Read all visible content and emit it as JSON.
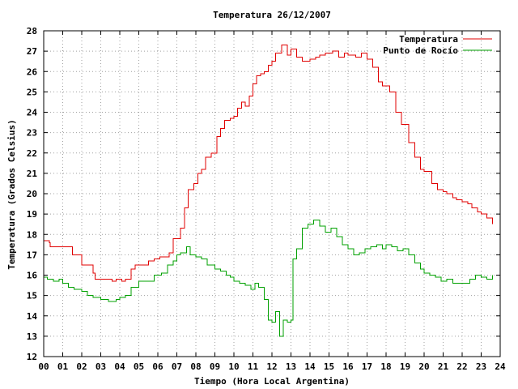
{
  "chart_data": {
    "type": "line",
    "title": "Temperatura 26/12/2007",
    "xlabel": "Tiempo (Hora Local Argentina)",
    "ylabel": "Temperatura (Grados Celsius)",
    "xlim": [
      0,
      24
    ],
    "ylim": [
      12,
      28
    ],
    "x_ticks": [
      "00",
      "01",
      "02",
      "03",
      "04",
      "05",
      "06",
      "07",
      "08",
      "09",
      "10",
      "11",
      "12",
      "13",
      "14",
      "15",
      "16",
      "17",
      "18",
      "19",
      "20",
      "21",
      "22",
      "23",
      "24"
    ],
    "y_ticks": [
      "12",
      "13",
      "14",
      "15",
      "16",
      "17",
      "18",
      "19",
      "20",
      "21",
      "22",
      "23",
      "24",
      "25",
      "26",
      "27",
      "28"
    ],
    "grid": true,
    "legend_position": "top-right",
    "series": [
      {
        "name": "Temperatura",
        "color": "#e00000",
        "x": [
          0,
          0.3,
          0.35,
          1.2,
          1.5,
          2.0,
          2.2,
          2.6,
          2.7,
          3.6,
          3.8,
          4.1,
          4.3,
          4.6,
          4.8,
          5.2,
          5.5,
          5.8,
          6.1,
          6.4,
          6.6,
          6.8,
          7.0,
          7.2,
          7.4,
          7.6,
          7.9,
          8.1,
          8.3,
          8.5,
          8.8,
          9.1,
          9.3,
          9.5,
          9.8,
          10.0,
          10.2,
          10.4,
          10.6,
          10.8,
          11.0,
          11.2,
          11.4,
          11.6,
          11.8,
          12.0,
          12.2,
          12.5,
          12.8,
          13.0,
          13.3,
          13.6,
          14.0,
          14.3,
          14.5,
          14.8,
          15.2,
          15.5,
          15.8,
          16.0,
          16.4,
          16.7,
          17.0,
          17.3,
          17.6,
          17.8,
          18.2,
          18.5,
          18.8,
          19.2,
          19.5,
          19.8,
          20.0,
          20.4,
          20.7,
          21.0,
          21.2,
          21.5,
          21.7,
          22.0,
          22.3,
          22.5,
          22.8,
          23.0,
          23.3,
          23.6
        ],
        "values": [
          17.7,
          17.6,
          17.4,
          17.4,
          17.0,
          16.5,
          16.5,
          16.1,
          15.8,
          15.7,
          15.8,
          15.7,
          15.8,
          16.3,
          16.5,
          16.5,
          16.7,
          16.8,
          16.9,
          16.9,
          17.1,
          17.8,
          17.8,
          18.3,
          19.3,
          20.2,
          20.5,
          21.0,
          21.2,
          21.8,
          22.0,
          22.8,
          23.2,
          23.6,
          23.7,
          23.8,
          24.2,
          24.5,
          24.3,
          24.8,
          25.4,
          25.8,
          25.9,
          26.0,
          26.3,
          26.5,
          26.9,
          27.3,
          26.8,
          27.1,
          26.7,
          26.5,
          26.6,
          26.7,
          26.8,
          26.9,
          27.0,
          26.7,
          26.9,
          26.8,
          26.7,
          26.9,
          26.6,
          26.2,
          25.5,
          25.3,
          25.0,
          24.0,
          23.4,
          22.5,
          21.8,
          21.2,
          21.1,
          20.5,
          20.2,
          20.1,
          20.0,
          19.8,
          19.7,
          19.6,
          19.5,
          19.3,
          19.1,
          19.0,
          18.8,
          18.5
        ]
      },
      {
        "name": "Punto de Rocío",
        "color": "#00a000",
        "x": [
          0,
          0.2,
          0.5,
          0.8,
          1.0,
          1.3,
          1.6,
          2.0,
          2.3,
          2.6,
          3.0,
          3.4,
          3.8,
          4.0,
          4.3,
          4.6,
          5.0,
          5.4,
          5.8,
          6.2,
          6.5,
          6.8,
          7.0,
          7.2,
          7.5,
          7.7,
          8.0,
          8.3,
          8.6,
          9.0,
          9.3,
          9.6,
          9.8,
          10.0,
          10.3,
          10.6,
          10.9,
          11.1,
          11.3,
          11.6,
          11.8,
          12.0,
          12.2,
          12.4,
          12.6,
          12.8,
          13.0,
          13.1,
          13.3,
          13.6,
          13.9,
          14.2,
          14.5,
          14.8,
          15.1,
          15.4,
          15.7,
          16.0,
          16.3,
          16.6,
          16.9,
          17.2,
          17.5,
          17.8,
          18.0,
          18.3,
          18.6,
          18.9,
          19.2,
          19.5,
          19.8,
          20.0,
          20.3,
          20.6,
          20.9,
          21.2,
          21.5,
          21.8,
          22.1,
          22.4,
          22.7,
          23.0,
          23.3,
          23.6
        ],
        "values": [
          15.9,
          15.8,
          15.7,
          15.8,
          15.6,
          15.4,
          15.3,
          15.2,
          15.0,
          14.9,
          14.8,
          14.7,
          14.8,
          14.9,
          15.0,
          15.4,
          15.7,
          15.7,
          16.0,
          16.1,
          16.5,
          16.7,
          17.0,
          17.1,
          17.4,
          17.0,
          16.9,
          16.8,
          16.5,
          16.3,
          16.2,
          16.0,
          15.9,
          15.7,
          15.6,
          15.5,
          15.3,
          15.6,
          15.4,
          14.8,
          13.8,
          13.7,
          14.2,
          13.0,
          13.8,
          13.7,
          13.8,
          16.8,
          17.3,
          18.3,
          18.5,
          18.7,
          18.4,
          18.1,
          18.3,
          17.9,
          17.5,
          17.3,
          17.0,
          17.1,
          17.3,
          17.4,
          17.5,
          17.3,
          17.5,
          17.4,
          17.2,
          17.3,
          17.0,
          16.6,
          16.3,
          16.1,
          16.0,
          15.9,
          15.7,
          15.8,
          15.6,
          15.6,
          15.6,
          15.8,
          16.0,
          15.9,
          15.8,
          16.0
        ]
      }
    ]
  }
}
